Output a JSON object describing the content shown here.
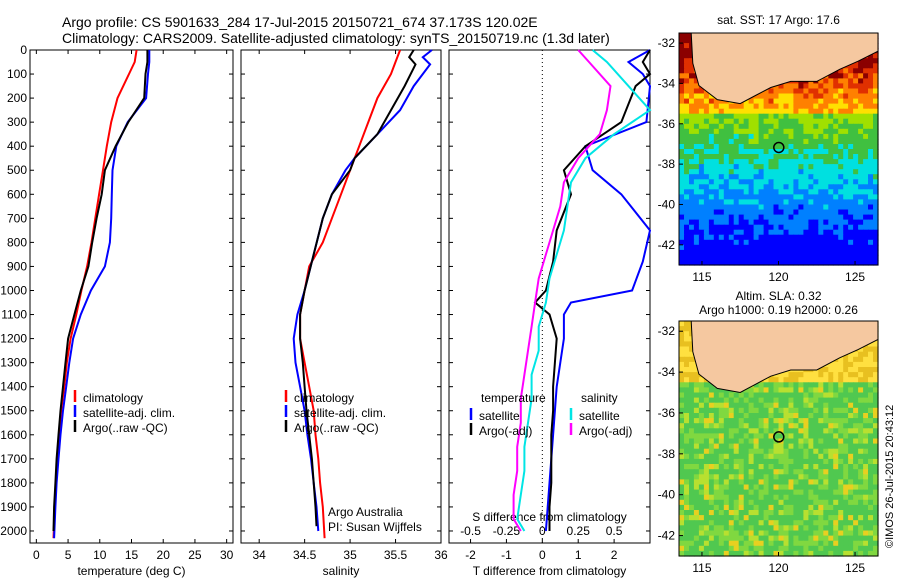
{
  "header": {
    "line1": "Argo profile: CS 5901633_284 17-Jul-2015 20150721_674 37.173S 120.02E",
    "line2": "Climatology: CARS2009. Satellite-adjusted climatology: synTS_20150719.nc (1.3d later)"
  },
  "colors": {
    "climatology": "#ff0000",
    "satellite": "#0000ff",
    "argo": "#000000",
    "sat_salinity": "#00e5e5",
    "argo_salinity": "#ff00ff",
    "land": "#f5c8a0"
  },
  "chart_data": [
    {
      "type": "line",
      "id": "temperature",
      "xlabel": "temperature (deg C)",
      "xlim": [
        -1,
        31
      ],
      "ylim": [
        2050,
        0
      ],
      "xticks": [
        0,
        5,
        10,
        15,
        20,
        25,
        30
      ],
      "yticks": [
        0,
        100,
        200,
        300,
        400,
        500,
        600,
        700,
        800,
        900,
        1000,
        1100,
        1200,
        1300,
        1400,
        1500,
        1600,
        1700,
        1800,
        1900,
        2000
      ],
      "legend": [
        "climatology",
        "satellite-adj. clim.",
        "Argo(..raw -QC)"
      ],
      "series": [
        {
          "name": "climatology",
          "color": "climatology",
          "x": [
            15.8,
            15.5,
            14.6,
            12.8,
            11.8,
            11.1,
            10.5,
            9.9,
            9.3,
            8.7,
            8.0,
            7.1,
            6.3,
            5.4,
            4.8,
            4.4,
            3.9,
            3.6,
            3.3,
            3.1,
            2.9,
            2.7
          ],
          "y": [
            0,
            50,
            100,
            200,
            300,
            400,
            500,
            600,
            700,
            800,
            900,
            1000,
            1100,
            1200,
            1300,
            1400,
            1500,
            1600,
            1700,
            1800,
            1900,
            2030
          ]
        },
        {
          "name": "satellite-adj. clim.",
          "color": "satellite",
          "x": [
            17.8,
            17.8,
            17.6,
            17.3,
            14.4,
            12.6,
            12.0,
            11.9,
            11.8,
            11.6,
            10.8,
            8.6,
            7.0,
            5.8,
            5.2,
            4.7,
            4.2,
            3.8,
            3.5,
            3.2,
            3.0,
            2.8
          ],
          "y": [
            0,
            50,
            100,
            200,
            300,
            400,
            500,
            600,
            700,
            800,
            900,
            1000,
            1100,
            1200,
            1300,
            1400,
            1500,
            1600,
            1700,
            1800,
            1900,
            2030
          ]
        },
        {
          "name": "Argo(..raw -QC)",
          "color": "argo",
          "x": [
            17.5,
            17.5,
            17.2,
            17.0,
            14.5,
            12.5,
            10.8,
            10.3,
            9.5,
            8.8,
            8.2,
            7.0,
            6.0,
            5.0,
            4.6,
            4.2,
            3.8,
            3.5,
            3.2,
            3.0,
            2.8,
            2.7
          ],
          "y": [
            0,
            50,
            100,
            200,
            300,
            400,
            500,
            600,
            700,
            800,
            900,
            1000,
            1100,
            1200,
            1300,
            1400,
            1500,
            1600,
            1700,
            1800,
            1900,
            2000
          ]
        }
      ]
    },
    {
      "type": "line",
      "id": "salinity",
      "xlabel": "salinity",
      "xlim": [
        33.8,
        36.0
      ],
      "ylim": [
        2050,
        0
      ],
      "xticks": [
        34,
        34.5,
        35,
        35.5,
        36
      ],
      "legend": [
        "climatology",
        "satellite-adj. clim.",
        "Argo(..raw -QC)"
      ],
      "annotation": [
        "Argo Australia",
        "PI: Susan Wijffels"
      ],
      "series": [
        {
          "name": "climatology",
          "color": "climatology",
          "x": [
            35.55,
            35.5,
            35.45,
            35.3,
            35.2,
            35.1,
            35.0,
            34.9,
            34.8,
            34.7,
            34.55,
            34.5,
            34.45,
            34.45,
            34.5,
            34.55,
            34.6,
            34.62,
            34.65,
            34.67,
            34.7,
            34.72
          ],
          "y": [
            0,
            50,
            100,
            200,
            300,
            400,
            500,
            600,
            700,
            800,
            900,
            1000,
            1100,
            1200,
            1300,
            1400,
            1500,
            1600,
            1700,
            1800,
            1900,
            2030
          ]
        },
        {
          "name": "satellite-adj. clim.",
          "color": "satellite",
          "x": [
            35.9,
            35.8,
            35.88,
            35.7,
            35.55,
            35.3,
            35.05,
            34.95,
            34.8,
            34.7,
            34.6,
            34.5,
            34.42,
            34.38,
            34.4,
            34.45,
            34.5,
            34.53,
            34.57,
            34.6,
            34.63,
            34.65
          ],
          "y": [
            0,
            30,
            60,
            150,
            250,
            350,
            450,
            500,
            600,
            700,
            850,
            1000,
            1100,
            1200,
            1300,
            1400,
            1500,
            1600,
            1700,
            1800,
            1900,
            2000
          ]
        },
        {
          "name": "Argo(..raw -QC)",
          "color": "argo",
          "x": [
            35.7,
            35.65,
            35.72,
            35.6,
            35.45,
            35.3,
            35.05,
            35.0,
            34.8,
            34.7,
            34.6,
            34.5,
            34.45,
            34.45,
            34.48,
            34.5,
            34.52,
            34.55,
            34.58,
            34.6,
            34.62,
            34.63
          ],
          "y": [
            0,
            30,
            60,
            150,
            250,
            350,
            450,
            500,
            600,
            700,
            850,
            1000,
            1100,
            1200,
            1300,
            1400,
            1500,
            1600,
            1700,
            1800,
            1900,
            1980
          ]
        }
      ]
    },
    {
      "type": "line",
      "id": "difference",
      "xlabel": "T difference from climatology",
      "xlabel2": "S difference from climatology",
      "xlim": [
        -2.6,
        3.0
      ],
      "ylim": [
        2050,
        0
      ],
      "xticks": [
        -2,
        -1,
        0,
        1,
        2
      ],
      "xticks2": [
        "-0.5",
        "-0.25",
        "0",
        "0.25",
        "0.5"
      ],
      "legend_title_t": "temperature",
      "legend_title_s": "salinity",
      "legend": [
        "satellite",
        "Argo(-adj)",
        "satellite",
        "Argo(-adj)"
      ],
      "series": [
        {
          "name": "satellite",
          "color": "satellite",
          "x": [
            3.0,
            2.4,
            2.8,
            3.0,
            2.9,
            1.2,
            1.4,
            2.2,
            3.0,
            2.8,
            2.5,
            0.8,
            0.6,
            0.6,
            0.5,
            0.4,
            0.35,
            0.3,
            0.25,
            0.2,
            0.15,
            0.1
          ],
          "y": [
            0,
            50,
            100,
            150,
            300,
            400,
            500,
            600,
            750,
            880,
            1000,
            1050,
            1100,
            1200,
            1300,
            1400,
            1500,
            1600,
            1700,
            1800,
            1900,
            2000
          ]
        },
        {
          "name": "Argo(-adj)",
          "color": "argo",
          "x": [
            3.0,
            2.8,
            3.0,
            2.6,
            2.2,
            1.2,
            0.6,
            0.8,
            0.4,
            0.3,
            0.1,
            -0.2,
            0.2,
            0.4,
            0.35,
            0.3,
            0.3,
            0.25,
            0.25,
            0.25,
            0.2,
            0.2
          ],
          "y": [
            0,
            50,
            100,
            150,
            300,
            400,
            500,
            600,
            750,
            880,
            1000,
            1050,
            1100,
            1200,
            1300,
            1400,
            1500,
            1600,
            1700,
            1800,
            1900,
            2000
          ]
        },
        {
          "name": "satellite",
          "color": "sat_salinity",
          "x": [
            1.4,
            1.8,
            2.4,
            3.0,
            2.0,
            1.2,
            0.8,
            0.7,
            0.6,
            0.4,
            0.2,
            0.1,
            -0.1,
            -0.1,
            -0.3,
            -0.3,
            -0.4,
            -0.5,
            -0.5,
            -0.6,
            -0.7,
            -0.5
          ],
          "y": [
            0,
            50,
            150,
            250,
            350,
            450,
            550,
            650,
            750,
            850,
            950,
            1050,
            1150,
            1250,
            1350,
            1450,
            1550,
            1650,
            1750,
            1850,
            1950,
            2000
          ]
        },
        {
          "name": "Argo(-adj)",
          "color": "argo_salinity",
          "x": [
            1.0,
            1.3,
            1.9,
            1.8,
            1.6,
            1.0,
            0.6,
            0.5,
            0.3,
            0.1,
            -0.1,
            -0.2,
            -0.3,
            -0.4,
            -0.5,
            -0.6,
            -0.6,
            -0.7,
            -0.7,
            -0.8,
            -0.8,
            -0.6
          ],
          "y": [
            0,
            50,
            150,
            250,
            350,
            450,
            550,
            650,
            750,
            850,
            950,
            1050,
            1150,
            1250,
            1350,
            1450,
            1550,
            1650,
            1750,
            1850,
            1950,
            2000
          ]
        }
      ]
    },
    {
      "type": "heatmap",
      "id": "sst_map",
      "title": "sat. SST: 17 Argo: 17.6",
      "xlim": [
        113.5,
        126.5
      ],
      "ylim": [
        -43,
        -31.5
      ],
      "xticks": [
        115,
        120,
        125
      ],
      "yticks": [
        -32,
        -34,
        -36,
        -38,
        -40,
        -42
      ],
      "marker": {
        "lon": 120.02,
        "lat": -37.173
      }
    },
    {
      "type": "heatmap",
      "id": "sla_map",
      "title_line1": "Altim. SLA: 0.32",
      "title_line2": "Argo h1000: 0.19 h2000: 0.26",
      "xlim": [
        113.5,
        126.5
      ],
      "ylim": [
        -43,
        -31.5
      ],
      "xticks": [
        115,
        120,
        125
      ],
      "yticks": [
        -32,
        -34,
        -36,
        -38,
        -40,
        -42
      ],
      "marker": {
        "lon": 120.02,
        "lat": -37.173
      },
      "credit": "©IMOS 26-Jul-2015 20:43:12"
    }
  ]
}
